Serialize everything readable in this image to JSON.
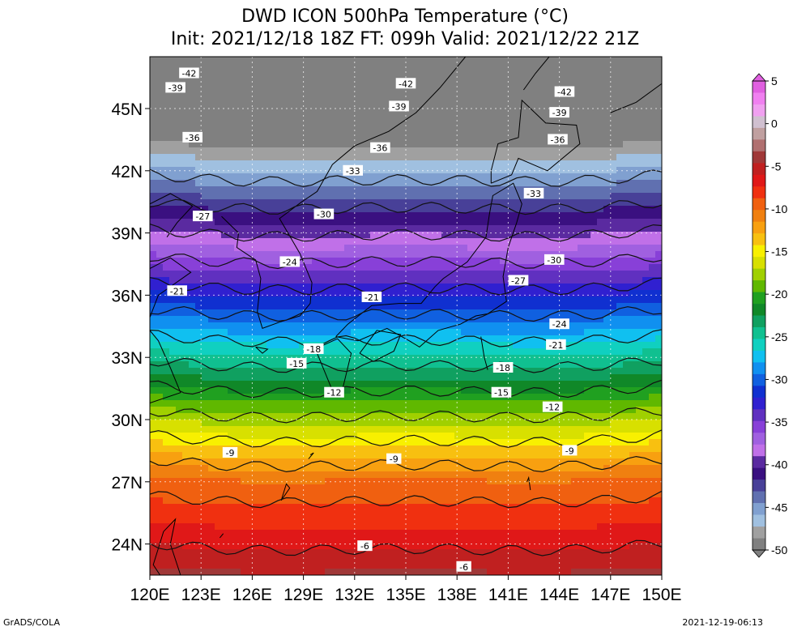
{
  "title": {
    "line1": "DWD ICON 500hPa Temperature (°C)",
    "line2": "Init: 2021/12/18 18Z  FT: 099h  Valid: 2021/12/22 21Z"
  },
  "footer": {
    "left": "GrADS/COLA",
    "right": "2021-12-19-06:13"
  },
  "axes": {
    "lat_ticks": [
      "45N",
      "42N",
      "39N",
      "36N",
      "33N",
      "30N",
      "27N",
      "24N"
    ],
    "lat_values": [
      45,
      42,
      39,
      36,
      33,
      30,
      27,
      24
    ],
    "lon_ticks": [
      "120E",
      "123E",
      "126E",
      "129E",
      "132E",
      "135E",
      "138E",
      "141E",
      "144E",
      "147E",
      "150E"
    ],
    "lon_values": [
      120,
      123,
      126,
      129,
      132,
      135,
      138,
      141,
      144,
      147,
      150
    ],
    "lon_range": [
      120,
      150
    ],
    "lat_range": [
      22.5,
      47.5
    ]
  },
  "colorbar": {
    "labels": [
      "5",
      "0",
      "-5",
      "-10",
      "-15",
      "-20",
      "-25",
      "-30",
      "-35",
      "-40",
      "-45",
      "-50"
    ],
    "values": [
      5,
      0,
      -5,
      -10,
      -15,
      -20,
      -25,
      -30,
      -35,
      -40,
      -45,
      -50
    ],
    "colors": [
      "#e060e0",
      "#f080f0",
      "#f0a0f0",
      "#d0c0d0",
      "#c0a0a0",
      "#b07070",
      "#a03838",
      "#c02020",
      "#e01818",
      "#f03010",
      "#f06010",
      "#f08010",
      "#f8a010",
      "#f8c010",
      "#f8f000",
      "#d8e000",
      "#a0d000",
      "#60b800",
      "#20a020",
      "#108828",
      "#10a060",
      "#10c090",
      "#10d0c0",
      "#10c0f0",
      "#1090f0",
      "#1060e0",
      "#1030d0",
      "#3020d0",
      "#6030c0",
      "#8840d8",
      "#a060e0",
      "#c070e8",
      "#5a2aa0",
      "#3a1080",
      "#484098",
      "#6070b0",
      "#80a0d0",
      "#a0c0e0",
      "#a0a0a0",
      "#808080"
    ]
  },
  "contour_labels": [
    {
      "text": "-42",
      "lon": 122.3,
      "lat": 46.7
    },
    {
      "text": "-39",
      "lon": 121.5,
      "lat": 46.0
    },
    {
      "text": "-42",
      "lon": 135.0,
      "lat": 46.2
    },
    {
      "text": "-42",
      "lon": 144.3,
      "lat": 45.8
    },
    {
      "text": "-39",
      "lon": 134.6,
      "lat": 45.1
    },
    {
      "text": "-39",
      "lon": 144.0,
      "lat": 44.8
    },
    {
      "text": "-36",
      "lon": 122.5,
      "lat": 43.6
    },
    {
      "text": "-36",
      "lon": 133.5,
      "lat": 43.1
    },
    {
      "text": "-36",
      "lon": 143.9,
      "lat": 43.5
    },
    {
      "text": "-33",
      "lon": 131.9,
      "lat": 42.0
    },
    {
      "text": "-33",
      "lon": 142.5,
      "lat": 40.9
    },
    {
      "text": "-30",
      "lon": 130.2,
      "lat": 39.9
    },
    {
      "text": "-27",
      "lon": 123.1,
      "lat": 39.8
    },
    {
      "text": "-30",
      "lon": 143.7,
      "lat": 37.7
    },
    {
      "text": "-24",
      "lon": 128.2,
      "lat": 37.6
    },
    {
      "text": "-27",
      "lon": 141.6,
      "lat": 36.7
    },
    {
      "text": "-21",
      "lon": 121.6,
      "lat": 36.2
    },
    {
      "text": "-21",
      "lon": 133.0,
      "lat": 35.9
    },
    {
      "text": "-24",
      "lon": 144.0,
      "lat": 34.6
    },
    {
      "text": "-21",
      "lon": 143.8,
      "lat": 33.6
    },
    {
      "text": "-18",
      "lon": 129.6,
      "lat": 33.4
    },
    {
      "text": "-15",
      "lon": 128.6,
      "lat": 32.7
    },
    {
      "text": "-18",
      "lon": 140.7,
      "lat": 32.5
    },
    {
      "text": "-12",
      "lon": 130.8,
      "lat": 31.3
    },
    {
      "text": "-15",
      "lon": 140.6,
      "lat": 31.3
    },
    {
      "text": "-12",
      "lon": 143.6,
      "lat": 30.6
    },
    {
      "text": "-9",
      "lon": 124.7,
      "lat": 28.4
    },
    {
      "text": "-9",
      "lon": 134.3,
      "lat": 28.1
    },
    {
      "text": "-9",
      "lon": 144.6,
      "lat": 28.5
    },
    {
      "text": "-6",
      "lon": 132.6,
      "lat": 23.9
    },
    {
      "text": "-6",
      "lon": 138.4,
      "lat": 22.9
    }
  ]
}
